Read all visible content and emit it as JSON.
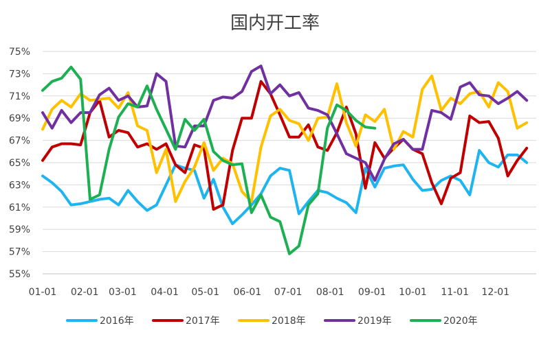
{
  "chart_data": {
    "type": "line",
    "title": "国内开工率",
    "xlabel": "",
    "ylabel": "",
    "ylim": [
      55,
      75
    ],
    "xlim": [
      1,
      53
    ],
    "grid": true,
    "legend_position": "bottom",
    "y_ticks": [
      "55%",
      "57%",
      "59%",
      "61%",
      "63%",
      "65%",
      "67%",
      "69%",
      "71%",
      "73%",
      "75%"
    ],
    "x_ticks": [
      {
        "label": "01-01",
        "x": 1
      },
      {
        "label": "02-01",
        "x": 5.43
      },
      {
        "label": "03-01",
        "x": 9.43
      },
      {
        "label": "04-01",
        "x": 13.86
      },
      {
        "label": "05-01",
        "x": 18.14
      },
      {
        "label": "06-01",
        "x": 22.57
      },
      {
        "label": "07-01",
        "x": 26.86
      },
      {
        "label": "08-01",
        "x": 31.29
      },
      {
        "label": "09-01",
        "x": 35.71
      },
      {
        "label": "10-01",
        "x": 40
      },
      {
        "label": "11-01",
        "x": 44.43
      },
      {
        "label": "12-01",
        "x": 48.71
      }
    ],
    "series": [
      {
        "name": "2016年",
        "color": "#1eb4f0",
        "values": [
          63.8,
          63.2,
          62.4,
          61.2,
          61.3,
          61.5,
          61.7,
          61.8,
          61.2,
          62.5,
          61.5,
          60.7,
          61.2,
          63.0,
          64.8,
          64.5,
          64.3,
          61.8,
          63.5,
          61.0,
          59.5,
          60.3,
          61.2,
          62.2,
          63.8,
          64.5,
          64.3,
          60.4,
          61.5,
          62.5,
          62.3,
          61.8,
          61.4,
          60.5,
          64.5,
          62.8,
          64.5,
          64.7,
          64.8,
          63.5,
          62.5,
          62.6,
          63.4,
          63.8,
          63.4,
          62.1,
          66.1,
          65.0,
          64.6,
          65.7,
          65.7,
          65.0
        ]
      },
      {
        "name": "2017年",
        "color": "#c00000",
        "values": [
          65.2,
          66.4,
          66.7,
          66.7,
          66.6,
          69.5,
          70.6,
          67.3,
          67.9,
          67.7,
          66.4,
          66.7,
          66.2,
          66.7,
          64.8,
          64.1,
          66.6,
          66.3,
          60.8,
          61.2,
          66.1,
          69.0,
          69.0,
          72.3,
          71.2,
          69.3,
          67.3,
          67.3,
          68.4,
          66.4,
          66.1,
          67.7,
          70.0,
          67.6,
          62.7,
          66.8,
          65.4,
          66.3,
          67.1,
          66.2,
          65.8,
          63.2,
          61.3,
          63.6,
          64.1,
          69.2,
          68.6,
          68.7,
          67.2,
          63.8,
          65.2,
          66.3
        ]
      },
      {
        "name": "2018年",
        "color": "#ffc000",
        "values": [
          68.0,
          69.8,
          70.6,
          70.0,
          71.2,
          70.6,
          70.7,
          70.8,
          69.9,
          71.3,
          68.3,
          67.9,
          64.1,
          66.2,
          61.5,
          63.3,
          64.6,
          66.8,
          64.3,
          65.4,
          64.9,
          62.4,
          61.5,
          66.4,
          69.2,
          69.8,
          68.8,
          68.5,
          67.0,
          69.0,
          69.1,
          72.1,
          68.6,
          66.5,
          69.3,
          68.7,
          69.8,
          66.2,
          67.8,
          67.3,
          71.6,
          72.8,
          69.7,
          70.8,
          70.3,
          71.2,
          71.4,
          70.0,
          72.2,
          71.4,
          68.1,
          68.6
        ]
      },
      {
        "name": "2019年",
        "color": "#7030a0",
        "values": [
          69.5,
          68.1,
          69.7,
          68.6,
          69.5,
          69.5,
          71.1,
          71.7,
          70.6,
          71.0,
          70.0,
          70.1,
          73.0,
          72.3,
          66.5,
          66.4,
          68.3,
          68.3,
          70.6,
          70.9,
          70.8,
          71.4,
          73.2,
          73.7,
          71.2,
          72.0,
          71.0,
          71.3,
          69.9,
          69.7,
          69.3,
          67.6,
          65.8,
          65.4,
          65.0,
          63.4,
          65.3,
          66.7,
          67.1,
          66.2,
          66.2,
          69.7,
          69.5,
          68.9,
          71.8,
          72.2,
          71.1,
          71.0,
          70.3,
          70.8,
          71.4,
          70.6
        ]
      },
      {
        "name": "2020年",
        "color": "#1db053",
        "values": [
          71.5,
          72.3,
          72.6,
          73.6,
          72.5,
          61.7,
          62.1,
          66.2,
          69.1,
          70.3,
          70.0,
          71.9,
          69.8,
          68.0,
          66.2,
          68.9,
          67.9,
          68.9,
          66.0,
          65.2,
          64.8,
          64.9,
          60.5,
          62.1,
          60.1,
          59.7,
          56.8,
          57.5,
          61.2,
          62.2,
          68.1,
          70.2,
          69.7,
          68.8,
          68.2,
          68.1
        ]
      }
    ]
  }
}
